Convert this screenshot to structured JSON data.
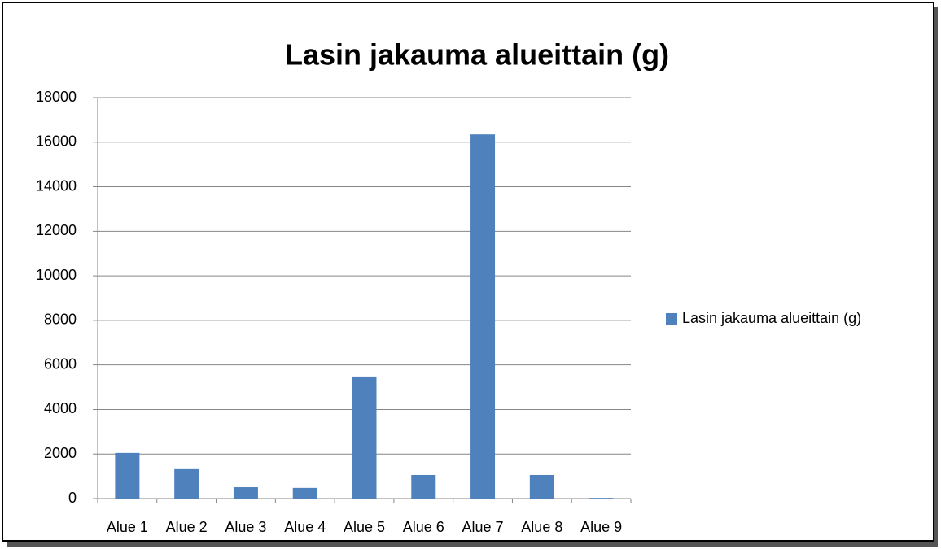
{
  "chart_data": {
    "type": "bar",
    "title": "Lasin jakauma alueittain (g)",
    "categories": [
      "Alue 1",
      "Alue 2",
      "Alue 3",
      "Alue 4",
      "Alue 5",
      "Alue 6",
      "Alue 7",
      "Alue 8",
      "Alue 9"
    ],
    "series": [
      {
        "name": "Lasin jakauma alueittain (g)",
        "color": "#4f81bd",
        "values": [
          2050,
          1320,
          510,
          480,
          5480,
          1060,
          16350,
          1060,
          30
        ]
      }
    ],
    "ylim": [
      0,
      18000
    ],
    "yticks": [
      0,
      2000,
      4000,
      6000,
      8000,
      10000,
      12000,
      14000,
      16000,
      18000
    ],
    "grid": true,
    "legend": "right"
  }
}
